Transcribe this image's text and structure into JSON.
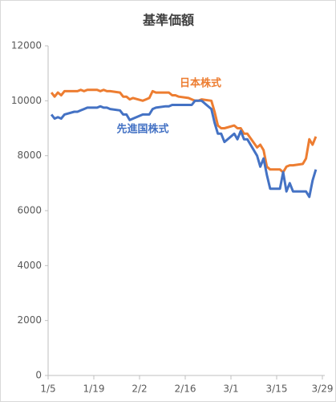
{
  "chart_data": {
    "type": "line",
    "title": "基準価額",
    "x": [
      "1/6",
      "1/7",
      "1/8",
      "1/9",
      "1/10",
      "1/13",
      "1/14",
      "1/15",
      "1/16",
      "1/17",
      "1/20",
      "1/21",
      "1/22",
      "1/23",
      "1/24",
      "1/27",
      "1/28",
      "1/29",
      "1/30",
      "1/31",
      "2/3",
      "2/4",
      "2/5",
      "2/6",
      "2/7",
      "2/10",
      "2/11",
      "2/12",
      "2/13",
      "2/14",
      "2/17",
      "2/18",
      "2/19",
      "2/20",
      "2/21",
      "2/24",
      "2/25",
      "2/26",
      "2/27",
      "2/28",
      "3/2",
      "3/3",
      "3/4",
      "3/5",
      "3/6",
      "3/9",
      "3/10",
      "3/11",
      "3/12",
      "3/13",
      "3/16",
      "3/17",
      "3/18",
      "3/19",
      "3/20",
      "3/23",
      "3/24",
      "3/25",
      "3/26",
      "3/27"
    ],
    "series": [
      {
        "name": "日本株式",
        "color": "#ed7d31",
        "values": [
          10300,
          10150,
          10300,
          10200,
          10350,
          10350,
          10350,
          10400,
          10350,
          10400,
          10400,
          10350,
          10400,
          10350,
          10350,
          10300,
          10150,
          10150,
          10050,
          10100,
          10000,
          10050,
          10100,
          10350,
          10300,
          10300,
          10300,
          10200,
          10200,
          10150,
          10100,
          10050,
          10000,
          10000,
          10050,
          10000,
          9600,
          9100,
          9000,
          9000,
          9100,
          9000,
          9000,
          8800,
          8800,
          8300,
          8400,
          8200,
          7600,
          7500,
          7500,
          7400,
          7600,
          7650,
          7650,
          7700,
          7900,
          8600,
          8400,
          8700
        ]
      },
      {
        "name": "先進国株式",
        "color": "#4472c4",
        "values": [
          9500,
          9350,
          9400,
          9350,
          9500,
          9600,
          9600,
          9650,
          9700,
          9750,
          9750,
          9800,
          9750,
          9750,
          9700,
          9650,
          9500,
          9500,
          9300,
          9350,
          9500,
          9500,
          9500,
          9700,
          9750,
          9800,
          9800,
          9850,
          9850,
          9850,
          9850,
          9850,
          10000,
          10000,
          10000,
          9700,
          9200,
          8800,
          8800,
          8500,
          8800,
          8600,
          8900,
          8600,
          8600,
          8000,
          7600,
          7900,
          7300,
          6800,
          6800,
          7400,
          6700,
          7000,
          6700,
          6700,
          6700,
          6500,
          7100,
          7500
        ]
      }
    ],
    "xticks": [
      "1/5",
      "1/19",
      "2/2",
      "2/16",
      "3/1",
      "3/15",
      "3/29"
    ],
    "ylim": [
      0,
      12000
    ],
    "yticks": [
      0,
      2000,
      4000,
      6000,
      8000,
      10000,
      12000
    ],
    "grid": false
  }
}
